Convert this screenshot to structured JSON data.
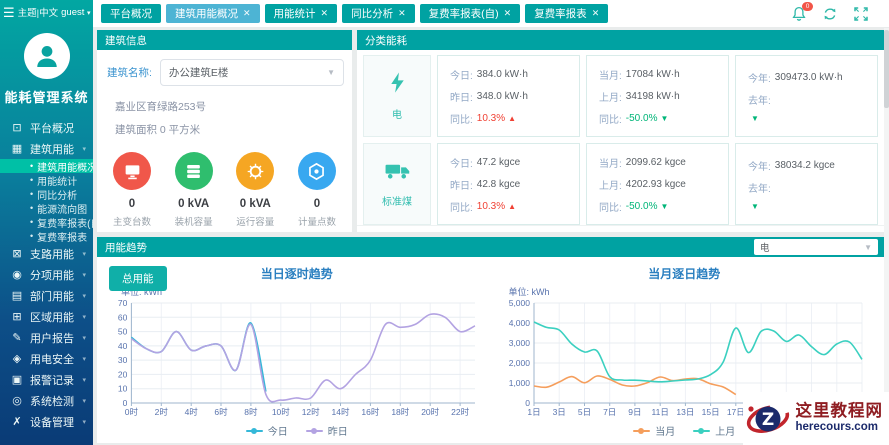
{
  "app": {
    "title": "能耗管理系统"
  },
  "topbar": {
    "theme_lang": "主题|中文",
    "user": "guest",
    "user_caret": "▾",
    "menu_icon": "hamburger-icon"
  },
  "tabs": [
    {
      "label": "平台概况",
      "closable": false,
      "active": false
    },
    {
      "label": "建筑用能概况",
      "closable": true,
      "active": true
    },
    {
      "label": "用能统计",
      "closable": true,
      "active": false
    },
    {
      "label": "同比分析",
      "closable": true,
      "active": false
    },
    {
      "label": "复费率报表(自)",
      "closable": true,
      "active": false
    },
    {
      "label": "复费率报表",
      "closable": true,
      "active": false
    }
  ],
  "header_actions": {
    "bell_icon": "bell-icon",
    "bell_badge": "0",
    "refresh_icon": "refresh-icon",
    "fullscreen_icon": "fullscreen-icon"
  },
  "sidebar": {
    "items": [
      {
        "label": "平台概况",
        "icon": "platform-overview-icon",
        "glyph": "⊡",
        "has_children": false
      },
      {
        "label": "建筑用能",
        "icon": "building-energy-icon",
        "glyph": "▦",
        "has_children": true,
        "expanded": true,
        "children": [
          {
            "label": "建筑用能概况",
            "active": true
          },
          {
            "label": "用能统计",
            "active": false
          },
          {
            "label": "同比分析",
            "active": false
          },
          {
            "label": "能源流向图",
            "active": false
          },
          {
            "label": "复费率报表(自)",
            "active": false
          },
          {
            "label": "复费率报表",
            "active": false
          }
        ]
      },
      {
        "label": "支路用能",
        "icon": "branch-energy-icon",
        "glyph": "⊠",
        "has_children": true
      },
      {
        "label": "分项用能",
        "icon": "subitem-energy-icon",
        "glyph": "◉",
        "has_children": true
      },
      {
        "label": "部门用能",
        "icon": "department-energy-icon",
        "glyph": "▤",
        "has_children": true
      },
      {
        "label": "区域用能",
        "icon": "area-energy-icon",
        "glyph": "⊞",
        "has_children": true
      },
      {
        "label": "用户报告",
        "icon": "user-report-icon",
        "glyph": "✎",
        "has_children": true
      },
      {
        "label": "用电安全",
        "icon": "electricity-safety-icon",
        "glyph": "◈",
        "has_children": true
      },
      {
        "label": "报警记录",
        "icon": "alarm-records-icon",
        "glyph": "▣",
        "has_children": true
      },
      {
        "label": "系统检测",
        "icon": "system-detection-icon",
        "glyph": "◎",
        "has_children": true
      },
      {
        "label": "设备管理",
        "icon": "device-management-icon",
        "glyph": "✗",
        "has_children": true
      }
    ]
  },
  "building": {
    "title": "建筑信息",
    "name_label": "建筑名称:",
    "name_value": "办公建筑E楼",
    "address": "嘉业区育绿路253号",
    "area": "建筑面积 0 平方米",
    "stats": [
      {
        "value": "0",
        "label": "主变台数",
        "color": "#f0574a",
        "icon": "transformer-icon"
      },
      {
        "value": "0 kVA",
        "label": "装机容量",
        "color": "#2fbe6e",
        "icon": "installed-capacity-icon"
      },
      {
        "value": "0 kVA",
        "label": "运行容量",
        "color": "#f5a623",
        "icon": "running-capacity-icon"
      },
      {
        "value": "0",
        "label": "计量点数",
        "color": "#38a8f0",
        "icon": "metering-points-icon"
      }
    ]
  },
  "category": {
    "title": "分类能耗",
    "rows": [
      {
        "icon": "electricity-icon",
        "label": "电",
        "cards": [
          {
            "lines": [
              {
                "k": "今日:",
                "v": "384.0 kW·h"
              },
              {
                "k": "昨日:",
                "v": "348.0 kW·h"
              },
              {
                "k": "同比:",
                "v": "10.3%",
                "trend": "up"
              }
            ]
          },
          {
            "lines": [
              {
                "k": "当月:",
                "v": "17084 kW·h"
              },
              {
                "k": "上月:",
                "v": "34198 kW·h"
              },
              {
                "k": "同比:",
                "v": "-50.0%",
                "trend": "down"
              }
            ]
          },
          {
            "lines": [
              {
                "k": "今年:",
                "v": "309473.0 kW·h"
              },
              {
                "k": "去年:",
                "v": ""
              },
              {
                "k": "",
                "v": "",
                "trend": "down"
              }
            ]
          }
        ]
      },
      {
        "icon": "coal-icon",
        "label": "标准煤",
        "cards": [
          {
            "lines": [
              {
                "k": "今日:",
                "v": "47.2 kgce"
              },
              {
                "k": "昨日:",
                "v": "42.8 kgce"
              },
              {
                "k": "同比:",
                "v": "10.3%",
                "trend": "up"
              }
            ]
          },
          {
            "lines": [
              {
                "k": "当月:",
                "v": "2099.62 kgce"
              },
              {
                "k": "上月:",
                "v": "4202.93 kgce"
              },
              {
                "k": "同比:",
                "v": "-50.0%",
                "trend": "down"
              }
            ]
          },
          {
            "lines": [
              {
                "k": "今年:",
                "v": "38034.2 kgce"
              },
              {
                "k": "去年:",
                "v": ""
              },
              {
                "k": "",
                "v": "",
                "trend": "down"
              }
            ]
          }
        ]
      }
    ]
  },
  "trend": {
    "title": "用能趋势",
    "total_button": "总用能",
    "select_value": "电"
  },
  "chart_data": [
    {
      "type": "line",
      "title": "当日逐时趋势",
      "unit_label": "单位: kWh",
      "categories": [
        "0时",
        "1时",
        "2时",
        "3时",
        "4时",
        "5时",
        "6时",
        "7时",
        "8时",
        "9时",
        "10时",
        "11时",
        "12时",
        "13时",
        "14时",
        "15时",
        "16时",
        "17时",
        "18时",
        "19时",
        "20时",
        "21时",
        "22时",
        "23时"
      ],
      "xlabel_step": 2,
      "ylim": [
        0,
        70
      ],
      "yticks": [
        0,
        10,
        20,
        30,
        40,
        50,
        60,
        70
      ],
      "ytick_labels": [
        "0",
        "10",
        "20",
        "30",
        "40",
        "50",
        "60",
        "70"
      ],
      "grid": true,
      "legend_position": "bottom",
      "series": [
        {
          "name": "今日",
          "color": "#35b8d8",
          "values": [
            46,
            38,
            36,
            50,
            37,
            40,
            40,
            23,
            56,
            8
          ]
        },
        {
          "name": "昨日",
          "color": "#b3a3e2",
          "values": [
            45,
            38,
            36,
            50,
            37,
            40,
            40,
            23,
            55,
            6,
            2,
            3.5,
            3.5,
            16,
            10,
            20,
            30,
            55,
            53,
            55,
            62,
            60,
            50,
            54
          ]
        }
      ]
    },
    {
      "type": "line",
      "title": "当月逐日趋势",
      "unit_label": "单位: kWh",
      "categories": [
        "1日",
        "2日",
        "3日",
        "4日",
        "5日",
        "6日",
        "7日",
        "8日",
        "9日",
        "10日",
        "11日",
        "12日",
        "13日",
        "14日",
        "15日",
        "16日",
        "17日",
        "18日",
        "19日",
        "20日",
        "21日",
        "22日",
        "23日",
        "24日",
        "25日",
        "26日",
        "27日"
      ],
      "xlabel_step": 2,
      "ylim": [
        0,
        5000
      ],
      "yticks": [
        0,
        1000,
        2000,
        3000,
        4000,
        5000
      ],
      "ytick_labels": [
        "0",
        "1,000",
        "2,000",
        "3,000",
        "4,000",
        "5,000"
      ],
      "grid": true,
      "legend_position": "bottom",
      "series": [
        {
          "name": "当月",
          "color": "#f59e5c",
          "values": [
            850,
            790,
            1050,
            1320,
            1010,
            1350,
            1180,
            900,
            850,
            1020,
            1300,
            1120,
            1200,
            1210,
            960,
            800,
            420
          ]
        },
        {
          "name": "上月",
          "color": "#3bd0c0",
          "values": [
            4050,
            3780,
            3650,
            2950,
            2550,
            2600,
            1320,
            1150,
            1140,
            1100,
            1060,
            1100,
            1150,
            1200,
            1420,
            2050,
            3750,
            2520,
            3580,
            3600,
            3080,
            3400,
            2820,
            2420,
            2950,
            3050,
            2180
          ]
        }
      ]
    }
  ],
  "watermark": {
    "site_name": "这里教程网",
    "site_domain": "herecours.com",
    "logo_letter": "Z"
  }
}
